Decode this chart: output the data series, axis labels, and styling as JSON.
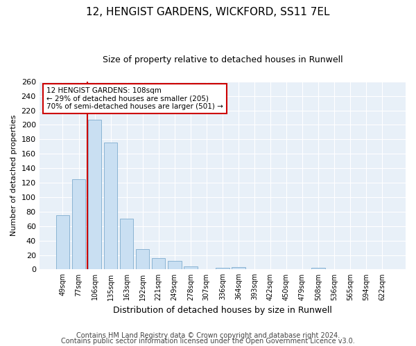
{
  "title1": "12, HENGIST GARDENS, WICKFORD, SS11 7EL",
  "title2": "Size of property relative to detached houses in Runwell",
  "xlabel": "Distribution of detached houses by size in Runwell",
  "ylabel": "Number of detached properties",
  "categories": [
    "49sqm",
    "77sqm",
    "106sqm",
    "135sqm",
    "163sqm",
    "192sqm",
    "221sqm",
    "249sqm",
    "278sqm",
    "307sqm",
    "336sqm",
    "364sqm",
    "393sqm",
    "422sqm",
    "450sqm",
    "479sqm",
    "508sqm",
    "536sqm",
    "565sqm",
    "594sqm",
    "622sqm"
  ],
  "values": [
    75,
    125,
    207,
    176,
    70,
    28,
    16,
    12,
    4,
    0,
    2,
    3,
    0,
    0,
    0,
    0,
    2,
    0,
    0,
    0,
    0
  ],
  "bar_color": "#c9dff2",
  "bar_edge_color": "#8ab4d4",
  "vline_color": "#cc0000",
  "vline_index": 2,
  "annotation_text_line1": "12 HENGIST GARDENS: 108sqm",
  "annotation_text_line2": "← 29% of detached houses are smaller (205)",
  "annotation_text_line3": "70% of semi-detached houses are larger (501) →",
  "ylim": [
    0,
    260
  ],
  "yticks": [
    0,
    20,
    40,
    60,
    80,
    100,
    120,
    140,
    160,
    180,
    200,
    220,
    240,
    260
  ],
  "footer1": "Contains HM Land Registry data © Crown copyright and database right 2024.",
  "footer2": "Contains public sector information licensed under the Open Government Licence v3.0.",
  "bg_color": "#ffffff",
  "plot_bg_color": "#e8f0f8",
  "grid_color": "#ffffff",
  "title1_fontsize": 11,
  "title2_fontsize": 9,
  "ylabel_fontsize": 8,
  "xlabel_fontsize": 9,
  "tick_fontsize": 8,
  "footer_fontsize": 7
}
